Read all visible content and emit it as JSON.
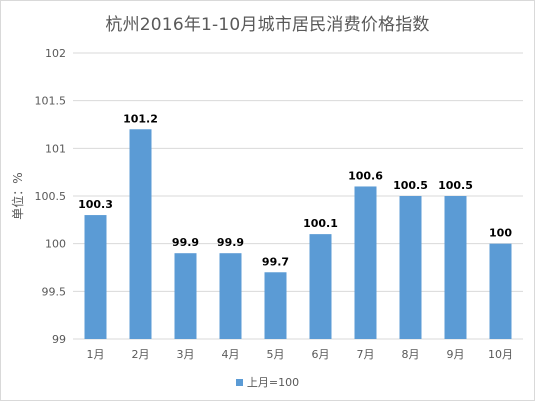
{
  "chart_data": {
    "type": "bar",
    "title": "杭州2016年1-10月城市居民消费价格指数",
    "ylabel": "单位：%",
    "xlabel": "",
    "categories": [
      "1月",
      "2月",
      "3月",
      "4月",
      "5月",
      "6月",
      "7月",
      "8月",
      "9月",
      "10月"
    ],
    "series": [
      {
        "name": "上月=100",
        "values": [
          100.3,
          101.2,
          99.9,
          99.9,
          99.7,
          100.1,
          100.6,
          100.5,
          100.5,
          100
        ],
        "labels": [
          "100.3",
          "101.2",
          "99.9",
          "99.9",
          "99.7",
          "100.1",
          "100.6",
          "100.5",
          "100.5",
          "100"
        ]
      }
    ],
    "ylim": [
      99,
      102
    ],
    "yticks": [
      99,
      99.5,
      100,
      100.5,
      101,
      101.5,
      102
    ],
    "ytick_labels": [
      "99",
      "99.5",
      "100",
      "100.5",
      "101",
      "101.5",
      "102"
    ],
    "grid": true,
    "legend_position": "bottom",
    "colors": {
      "bar": "#5b9bd5",
      "grid": "#d9d9d9",
      "text": "#595959",
      "data_label": "#000000"
    }
  }
}
